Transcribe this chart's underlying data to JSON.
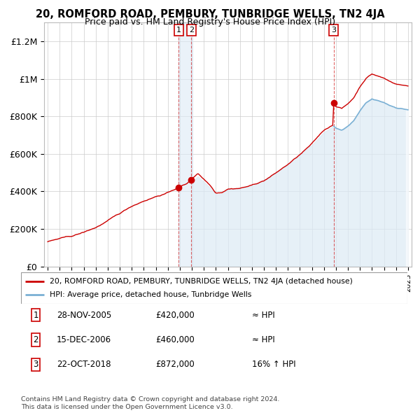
{
  "title": "20, ROMFORD ROAD, PEMBURY, TUNBRIDGE WELLS, TN2 4JA",
  "subtitle": "Price paid vs. HM Land Registry's House Price Index (HPI)",
  "price_color": "#cc0000",
  "hpi_color": "#7ab0d4",
  "hpi_fill_color": "#dceaf5",
  "background_color": "#ffffff",
  "grid_color": "#cccccc",
  "ylim": [
    0,
    1300000
  ],
  "yticks": [
    0,
    200000,
    400000,
    600000,
    800000,
    1000000,
    1200000
  ],
  "ytick_labels": [
    "£0",
    "£200K",
    "£400K",
    "£600K",
    "£800K",
    "£1M",
    "£1.2M"
  ],
  "sale1_x": 2005.91,
  "sale1_price": 420000,
  "sale1_date": "28-NOV-2005",
  "sale1_label": "£420,000",
  "sale1_hpi": "≈ HPI",
  "sale2_x": 2006.96,
  "sale2_price": 460000,
  "sale2_date": "15-DEC-2006",
  "sale2_label": "£460,000",
  "sale2_hpi": "≈ HPI",
  "sale3_x": 2018.81,
  "sale3_price": 872000,
  "sale3_date": "22-OCT-2018",
  "sale3_label": "£872,000",
  "sale3_hpi": "16% ↑ HPI",
  "legend_line1": "20, ROMFORD ROAD, PEMBURY, TUNBRIDGE WELLS, TN2 4JA (detached house)",
  "legend_line2": "HPI: Average price, detached house, Tunbridge Wells",
  "footnote1": "Contains HM Land Registry data © Crown copyright and database right 2024.",
  "footnote2": "This data is licensed under the Open Government Licence v3.0."
}
